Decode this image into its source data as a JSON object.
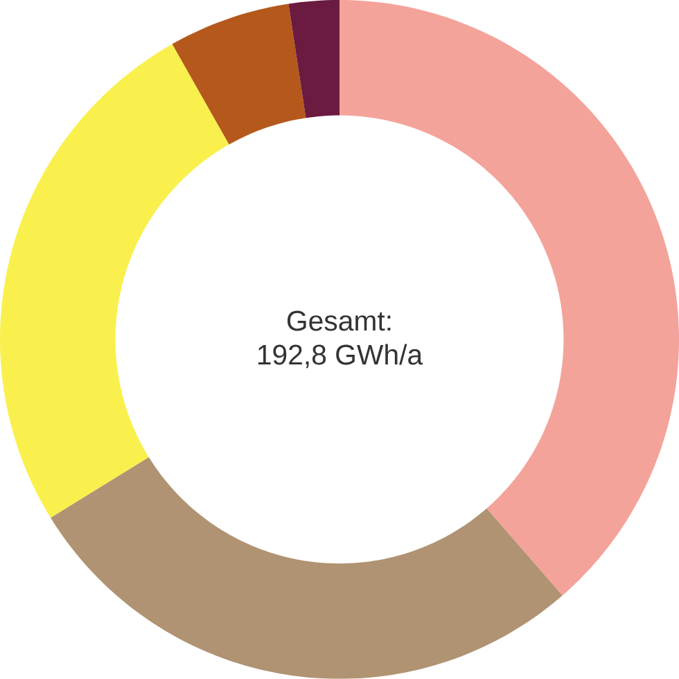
{
  "chart_data": {
    "type": "donut",
    "title": "Gesamt:",
    "subtitle": "192,8 GWh/a",
    "categories": [
      null,
      null,
      null,
      null,
      null
    ],
    "values": [
      38.6,
      27.6,
      25.6,
      5.8,
      2.4
    ],
    "colors": [
      "#f4a39a",
      "#b09372",
      "#f9f04e",
      "#b5581c",
      "#6b1a40"
    ]
  }
}
